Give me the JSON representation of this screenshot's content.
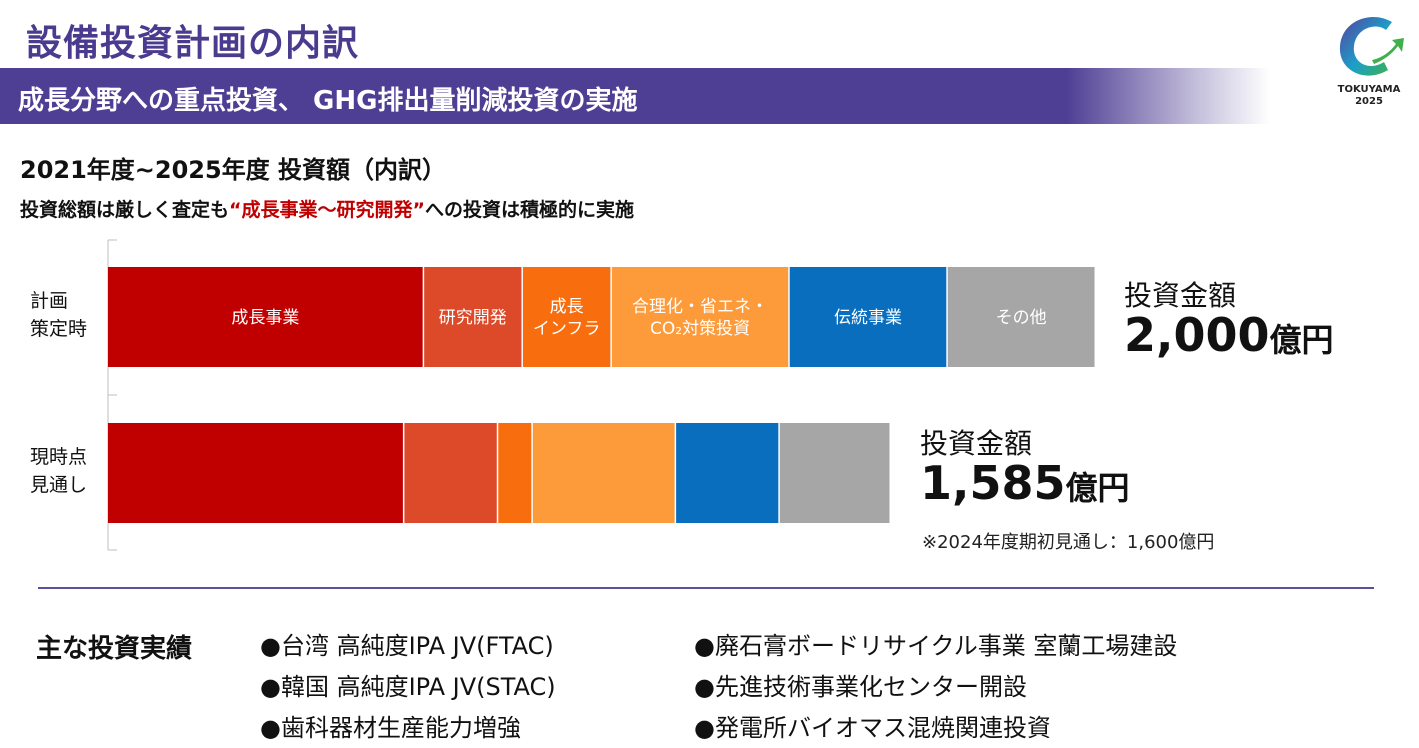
{
  "title": "設備投資計画の内訳",
  "banner": "成長分野への重点投資、 GHG排出量削減投資の実施",
  "logo": {
    "icon": "tokuyama-c-arrow-logo",
    "text": "TOKUYAMA",
    "year": "2025"
  },
  "subtitle": "2021年度~2025年度 投資額（内訳）",
  "description": {
    "prefix": "投資総額は厳しく査定も",
    "highlight": "“成長事業～研究開発”",
    "suffix": "への投資は積極的に実施"
  },
  "chart_data": {
    "type": "bar",
    "orientation": "horizontal-stacked",
    "categories": [
      "計画策定時",
      "現時点見通し"
    ],
    "category_lines": [
      [
        "計画",
        "策定時"
      ],
      [
        "現時点",
        "見通し"
      ]
    ],
    "unit": "億円",
    "segments": [
      {
        "label_lines": [
          "成長事業"
        ],
        "color": "#c00000",
        "values": [
          640,
          600
        ]
      },
      {
        "label_lines": [
          "研究開発"
        ],
        "color": "#dc4a2a",
        "values": [
          200,
          190
        ]
      },
      {
        "label_lines": [
          "成長",
          "インフラ"
        ],
        "color": "#f86d0d",
        "values": [
          180,
          70
        ]
      },
      {
        "label_lines": [
          "合理化・省エネ・",
          "CO₂対策投資"
        ],
        "color": "#fd9b3b",
        "values": [
          360,
          290
        ]
      },
      {
        "label_lines": [
          "伝統事業"
        ],
        "color": "#0a6ebe",
        "values": [
          320,
          210
        ]
      },
      {
        "label_lines": [
          "その他"
        ],
        "color": "#a6a6a6",
        "values": [
          300,
          225
        ]
      }
    ],
    "totals": [
      {
        "label": "投資金額",
        "value": "2,000",
        "unit": "億円"
      },
      {
        "label": "投資金額",
        "value": "1,585",
        "unit": "億円"
      }
    ],
    "xlim": [
      0,
      2000
    ],
    "grid": false
  },
  "note": "※2024年度期初見通し：1,600億円",
  "results": {
    "title": "主な投資実績",
    "left": [
      "●台湾 高純度IPA JV(FTAC)",
      "●韓国 高純度IPA JV(STAC)",
      "●歯科器材生産能力増強"
    ],
    "right": [
      "●廃石膏ボードリサイクル事業 室蘭工場建設",
      "●先進技術事業化センター開設",
      "●発電所バイオマス混焼関連投資"
    ]
  }
}
